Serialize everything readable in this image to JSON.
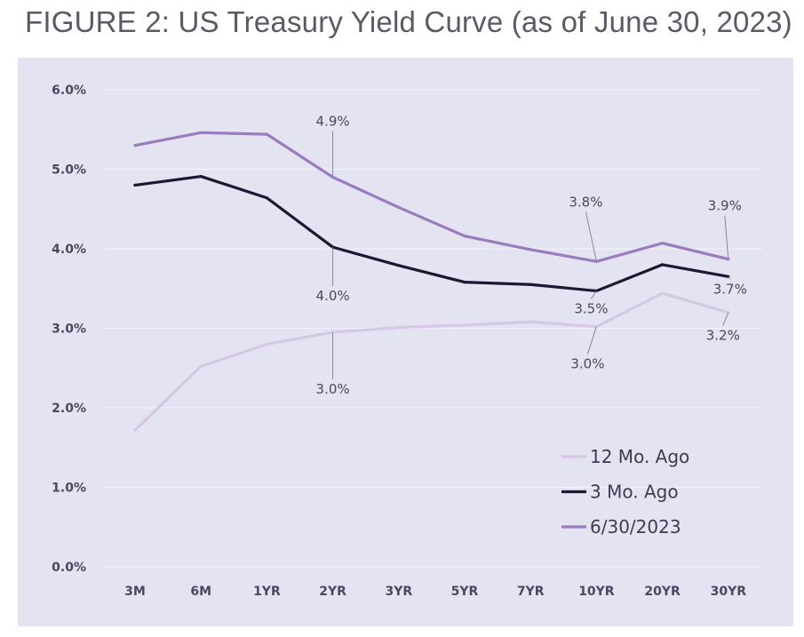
{
  "figure": {
    "title": "FIGURE 2: US Treasury Yield Curve (as of June 30, 2023)"
  },
  "colors": {
    "background": "#ffffff",
    "panel": "#e4e3f1",
    "grid": "#f2f1fa",
    "axis_text": "#4a4860",
    "title_text": "#5a5a66"
  },
  "chart_data": {
    "type": "line",
    "title": "FIGURE 2: US Treasury Yield Curve (as of June 30, 2023)",
    "xlabel": "",
    "ylabel": "",
    "categories": [
      "3M",
      "6M",
      "1YR",
      "2YR",
      "3YR",
      "5YR",
      "7YR",
      "10YR",
      "20YR",
      "30YR"
    ],
    "ylim": [
      0,
      6
    ],
    "yticks": [
      0,
      1,
      2,
      3,
      4,
      5,
      6
    ],
    "ytick_labels": [
      "0.0%",
      "1.0%",
      "2.0%",
      "3.0%",
      "4.0%",
      "5.0%",
      "6.0%"
    ],
    "grid": true,
    "legend_position": "bottom-right",
    "series": [
      {
        "name": "12 Mo. Ago",
        "color": "#d7c7e6",
        "values": [
          1.72,
          2.52,
          2.8,
          2.95,
          3.01,
          3.04,
          3.08,
          3.02,
          3.44,
          3.2
        ],
        "labels": [
          {
            "index": 3,
            "text": "3.0%",
            "position": "below"
          },
          {
            "index": 7,
            "text": "3.0%",
            "position": "below"
          },
          {
            "index": 9,
            "text": "3.2%",
            "position": "below"
          }
        ]
      },
      {
        "name": "3 Mo. Ago",
        "color": "#1c1733",
        "values": [
          4.8,
          4.91,
          4.64,
          4.02,
          3.79,
          3.58,
          3.55,
          3.47,
          3.8,
          3.65
        ],
        "labels": [
          {
            "index": 3,
            "text": "4.0%",
            "position": "below"
          },
          {
            "index": 7,
            "text": "3.5%",
            "position": "below"
          },
          {
            "index": 9,
            "text": "3.7%",
            "position": "below"
          }
        ]
      },
      {
        "name": "6/30/2023",
        "color": "#9a7cbe",
        "values": [
          5.3,
          5.46,
          5.44,
          4.9,
          4.52,
          4.16,
          3.99,
          3.84,
          4.07,
          3.87
        ],
        "labels": [
          {
            "index": 3,
            "text": "4.9%",
            "position": "above"
          },
          {
            "index": 7,
            "text": "3.8%",
            "position": "above"
          },
          {
            "index": 9,
            "text": "3.9%",
            "position": "above"
          }
        ]
      }
    ]
  }
}
